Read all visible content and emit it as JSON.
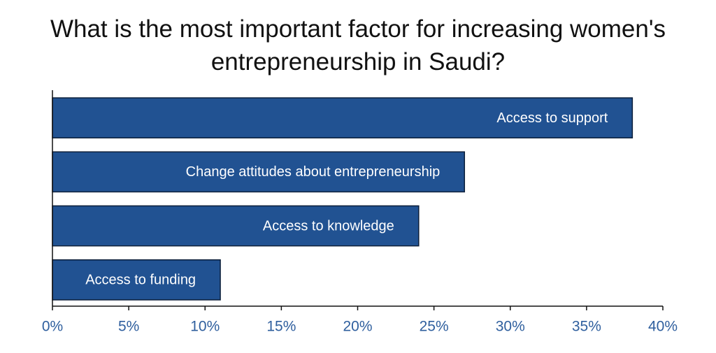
{
  "chart_data": {
    "type": "hbar",
    "title": "What is the most important factor for increasing women's entrepreneurship in Saudi?",
    "categories": [
      "Access to support",
      "Change attitudes about entrepreneurship",
      "Access to knowledge",
      "Access to funding"
    ],
    "values": [
      38,
      27,
      24,
      11
    ],
    "color": "#215292",
    "xlim": [
      0,
      40
    ],
    "xticks": [
      {
        "value": 0,
        "label": "0%"
      },
      {
        "value": 5,
        "label": "5%"
      },
      {
        "value": 10,
        "label": "10%"
      },
      {
        "value": 15,
        "label": "15%"
      },
      {
        "value": 20,
        "label": "20%"
      },
      {
        "value": 25,
        "label": "25%"
      },
      {
        "value": 30,
        "label": "30%"
      },
      {
        "value": 35,
        "label": "35%"
      },
      {
        "value": 40,
        "label": "40%"
      }
    ]
  }
}
